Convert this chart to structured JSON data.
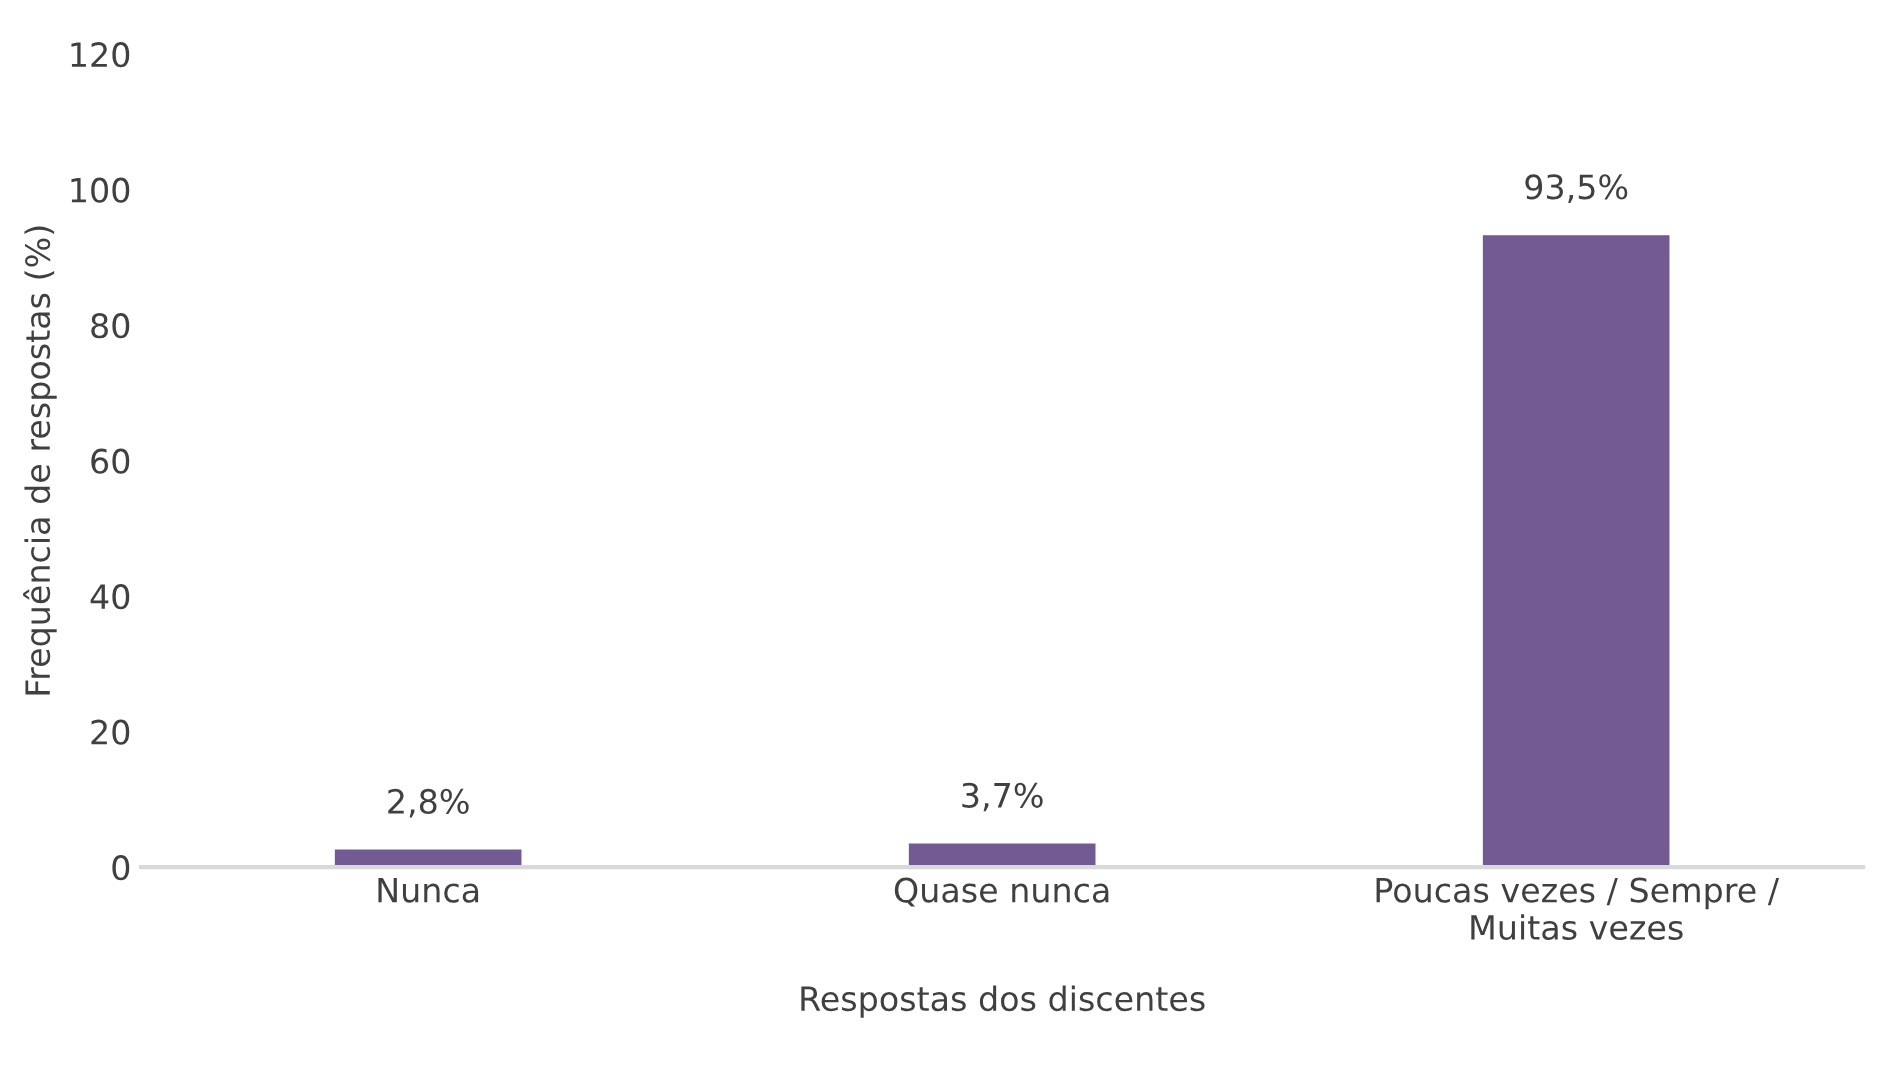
{
  "chart_data": {
    "type": "bar",
    "xlabel": "Respostas dos discentes",
    "ylabel": "Frequência de respostas (%)",
    "categories": [
      "Nunca",
      "Quase nunca",
      "Poucas vezes / Sempre /\nMuitas vezes"
    ],
    "values": [
      2.8,
      3.7,
      93.5
    ],
    "value_labels": [
      "2,8%",
      "3,7%",
      "93,5%"
    ],
    "color": "#725a93",
    "ylim": [
      0,
      120
    ],
    "yticks": [
      0,
      20,
      40,
      60,
      80,
      100,
      120
    ],
    "grid": false,
    "legend": false
  }
}
